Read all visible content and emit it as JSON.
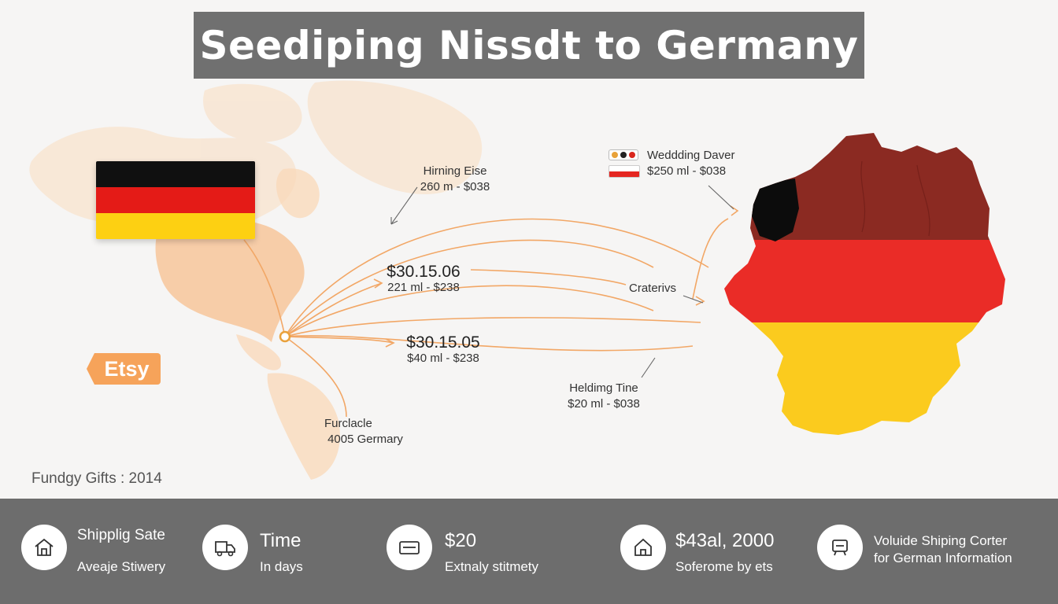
{
  "title": "Seediping Nissdt to Germany",
  "colors": {
    "title_bg": "#707070",
    "band_bg": "#6d6d6d",
    "route_line": "#f2a766",
    "map_fill": "#f7c9a0",
    "flag_black": "#101010",
    "flag_red": "#e41b17",
    "flag_gold": "#fdd012",
    "etsy_orange": "#f6a35a"
  },
  "etsy_label": "Etsy",
  "routes": {
    "hiring_else": {
      "title": "Hirning Eise",
      "detail": "260 m - $038"
    },
    "route_a": {
      "price": "$30.15.06",
      "detail": "221 ml - $238"
    },
    "route_b": {
      "price": "$30.15.05",
      "detail": "$40 ml - $238"
    },
    "wedding": {
      "title": "Weddding Daver",
      "detail": "$250 ml - $038"
    },
    "craterivs": {
      "title": "Craterivs"
    },
    "holding": {
      "title": "Heldimg Tine",
      "detail": "$20 ml - $038"
    },
    "origin": {
      "title": "Furclacle",
      "detail": "4005 Germary"
    }
  },
  "footer_note": "Fundgy Gifts : 2014",
  "stats": [
    {
      "icon": "home-icon",
      "title": "Shipplig Sate",
      "subtitle": "Aveaje Stiwery"
    },
    {
      "icon": "truck-icon",
      "title": "Time",
      "subtitle": "In days"
    },
    {
      "icon": "card-icon",
      "title": "$20",
      "subtitle": "Extnaly stitmety"
    },
    {
      "icon": "house-icon",
      "title": "$43al, 2000",
      "subtitle": "Soferome by ets"
    },
    {
      "icon": "monitor-icon",
      "title": "Voluide Shiping Corter",
      "subtitle": "for  German Information"
    }
  ]
}
